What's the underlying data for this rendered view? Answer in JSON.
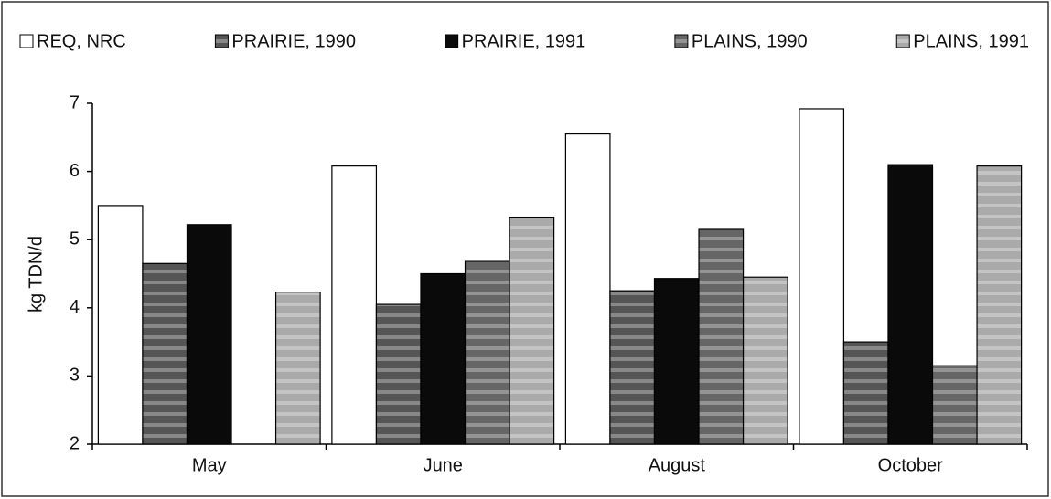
{
  "chart_data": {
    "type": "bar",
    "y_label": "kg TDN/d",
    "categories": [
      "May",
      "June",
      "August",
      "October"
    ],
    "series": [
      {
        "name": "REQ, NRC",
        "color": "#ffffff",
        "values": [
          5.5,
          6.08,
          6.55,
          6.92
        ]
      },
      {
        "name": "PRAIRIE, 1990",
        "color": "#555555",
        "values": [
          4.65,
          4.05,
          4.25,
          3.5
        ]
      },
      {
        "name": "PRAIRIE, 1991",
        "color": "#0a0a0a",
        "values": [
          5.22,
          4.5,
          4.43,
          6.1
        ]
      },
      {
        "name": "PLAINS, 1990",
        "color": "#666666",
        "values": [
          null,
          4.68,
          5.15,
          3.15
        ]
      },
      {
        "name": "PLAINS, 1991",
        "color": "#aaaaaa",
        "values": [
          4.23,
          5.33,
          4.45,
          6.08
        ]
      }
    ],
    "ylim": [
      2,
      7
    ],
    "yticks": [
      2,
      3,
      4,
      5,
      6,
      7
    ],
    "legend": "top",
    "grid": false
  }
}
